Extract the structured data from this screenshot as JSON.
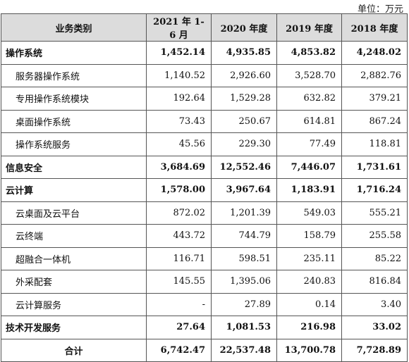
{
  "unit_label": "单位：万元",
  "headers": [
    "业务类别",
    "2021 年 1-6 月",
    "2020 年度",
    "2019 年度",
    "2018 年度"
  ],
  "rows": [
    {
      "type": "cat",
      "label": "操作系统",
      "values": [
        "1,452.14",
        "4,935.85",
        "4,853.82",
        "4,248.02"
      ]
    },
    {
      "type": "sub",
      "label": "服务器操作系统",
      "values": [
        "1,140.52",
        "2,926.60",
        "3,528.70",
        "2,882.76"
      ]
    },
    {
      "type": "sub",
      "label": "专用操作系统模块",
      "values": [
        "192.64",
        "1,529.28",
        "632.82",
        "379.21"
      ]
    },
    {
      "type": "sub",
      "label": "桌面操作系统",
      "values": [
        "73.43",
        "250.67",
        "614.81",
        "867.24"
      ]
    },
    {
      "type": "sub",
      "label": "操作系统服务",
      "values": [
        "45.56",
        "229.30",
        "77.49",
        "118.81"
      ]
    },
    {
      "type": "cat",
      "label": "信息安全",
      "values": [
        "3,684.69",
        "12,552.46",
        "7,446.07",
        "1,731.61"
      ]
    },
    {
      "type": "cat",
      "label": "云计算",
      "values": [
        "1,578.00",
        "3,967.64",
        "1,183.91",
        "1,716.24"
      ]
    },
    {
      "type": "sub",
      "label": "云桌面及云平台",
      "values": [
        "872.02",
        "1,201.39",
        "549.03",
        "555.21"
      ]
    },
    {
      "type": "sub",
      "label": "云终端",
      "values": [
        "443.72",
        "744.79",
        "158.79",
        "255.58"
      ]
    },
    {
      "type": "sub",
      "label": "超融合一体机",
      "values": [
        "116.71",
        "598.51",
        "235.11",
        "85.22"
      ]
    },
    {
      "type": "sub",
      "label": "外采配套",
      "values": [
        "145.55",
        "1,395.06",
        "240.83",
        "816.84"
      ]
    },
    {
      "type": "sub",
      "label": "云计算服务",
      "values": [
        "-",
        "27.89",
        "0.14",
        "3.40"
      ]
    },
    {
      "type": "cat",
      "label": "技术开发服务",
      "values": [
        "27.64",
        "1,081.53",
        "216.98",
        "33.02"
      ]
    },
    {
      "type": "total",
      "label": "合计",
      "values": [
        "6,742.47",
        "22,537.48",
        "13,700.78",
        "7,728.89"
      ]
    }
  ]
}
